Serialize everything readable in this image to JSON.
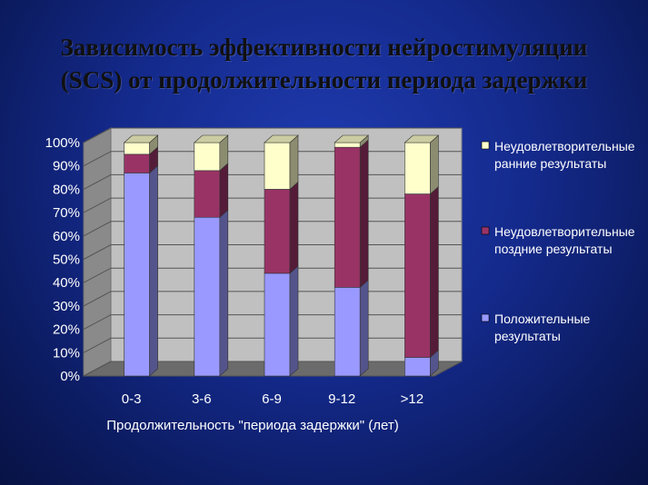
{
  "title": {
    "line1": "Зависимость эффективности нейростимуляции",
    "line2": "(SCS) от продолжительности периода задержки"
  },
  "chart_data": {
    "type": "bar",
    "stacked": "percent",
    "three_d": true,
    "categories": [
      "0-3",
      "3-6",
      "6-9",
      "9-12",
      ">12"
    ],
    "series": [
      {
        "name": "Положительные результаты",
        "values": [
          87,
          68,
          44,
          38,
          8
        ],
        "color": "#9999ff"
      },
      {
        "name": "Неудовлетворительные поздние результаты",
        "values": [
          8,
          20,
          36,
          60,
          70
        ],
        "color": "#993366"
      },
      {
        "name": "Неудовлетворительные ранние результаты",
        "values": [
          5,
          12,
          20,
          2,
          22
        ],
        "color": "#ffffcc"
      }
    ],
    "legend": [
      {
        "line1": "Неудовлетворительные",
        "line2": "ранние результаты"
      },
      {
        "line1": "Неудовлетворительные",
        "line2": "поздние результаты"
      },
      {
        "line1": "Положительные",
        "line2": "результаты"
      }
    ],
    "legend_position": "right",
    "xlabel": "Продолжительность \"периода задержки\" (лет)",
    "ylabel": "",
    "ylim": [
      0,
      100
    ],
    "yticks": [
      "0%",
      "10%",
      "20%",
      "30%",
      "40%",
      "50%",
      "60%",
      "70%",
      "80%",
      "90%",
      "100%"
    ],
    "grid": true
  }
}
